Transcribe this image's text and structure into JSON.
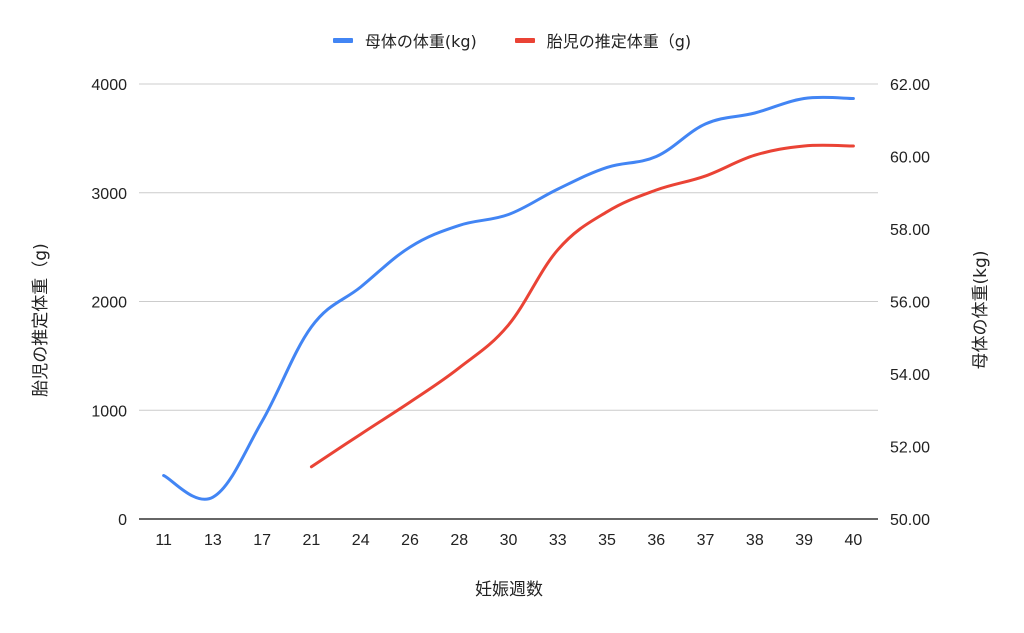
{
  "chart_data": {
    "type": "line",
    "title": "",
    "xlabel": "妊娠週数",
    "ylabel_left": "胎児の推定体重（g)",
    "ylabel_right": "母体の体重(kg)",
    "categories": [
      "11",
      "13",
      "17",
      "21",
      "24",
      "26",
      "28",
      "30",
      "33",
      "35",
      "36",
      "37",
      "38",
      "39",
      "40"
    ],
    "y_left": {
      "min": 0,
      "max": 4000,
      "ticks": [
        "0",
        "1000",
        "2000",
        "3000",
        "4000"
      ]
    },
    "y_right": {
      "min": 50,
      "max": 62,
      "ticks": [
        "50.00",
        "52.00",
        "54.00",
        "56.00",
        "58.00",
        "60.00",
        "62.00"
      ]
    },
    "grid": true,
    "legend_position": "top",
    "smooth": true,
    "series": [
      {
        "name": "母体の体重(kg)",
        "axis": "right",
        "color": "#4285F4",
        "values": [
          51.2,
          50.6,
          52.7,
          55.3,
          56.4,
          57.5,
          58.1,
          58.4,
          59.1,
          59.7,
          60.0,
          60.9,
          61.2,
          61.6,
          61.6
        ]
      },
      {
        "name": "胎児の推定体重（g)",
        "axis": "left",
        "color": "#EA4335",
        "values": [
          null,
          null,
          null,
          480,
          780,
          1075,
          1390,
          1785,
          2475,
          2825,
          3025,
          3155,
          3345,
          3430,
          3430
        ]
      }
    ]
  },
  "legend": {
    "items": [
      {
        "label": "母体の体重(kg)",
        "color": "#4285F4"
      },
      {
        "label": "胎児の推定体重（g)",
        "color": "#EA4335"
      }
    ]
  }
}
